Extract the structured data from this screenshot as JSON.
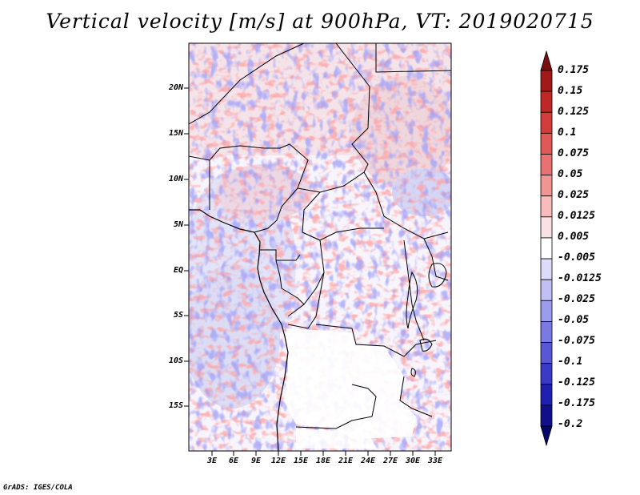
{
  "title": "Vertical velocity [m/s] at 900hPa, VT: 2019020715",
  "map": {
    "latitude_labels": [
      "20N",
      "15N",
      "10N",
      "5N",
      "EQ",
      "5S",
      "10S",
      "15S"
    ],
    "longitude_labels": [
      "3E",
      "6E",
      "9E",
      "12E",
      "15E",
      "18E",
      "21E",
      "24E",
      "27E",
      "30E",
      "33E"
    ]
  },
  "colorbar": {
    "labels": [
      "0.175",
      "0.15",
      "0.125",
      "0.1",
      "0.075",
      "0.05",
      "0.025",
      "0.0125",
      "0.005",
      "-0.005",
      "-0.0125",
      "-0.025",
      "-0.05",
      "-0.075",
      "-0.1",
      "-0.125",
      "-0.175",
      "-0.2"
    ],
    "colors": [
      "#7a0f0f",
      "#a01a1a",
      "#c02828",
      "#d43c3c",
      "#e05858",
      "#e87272",
      "#f09494",
      "#f8bcbc",
      "#fbe2e2",
      "#ffffff",
      "#dcdcfa",
      "#c0c0f4",
      "#9c9cec",
      "#7a7ae2",
      "#5858d6",
      "#3a3ac8",
      "#2020b0",
      "#10108a",
      "#06066a"
    ]
  },
  "credit": "GrADS: IGES/COLA"
}
